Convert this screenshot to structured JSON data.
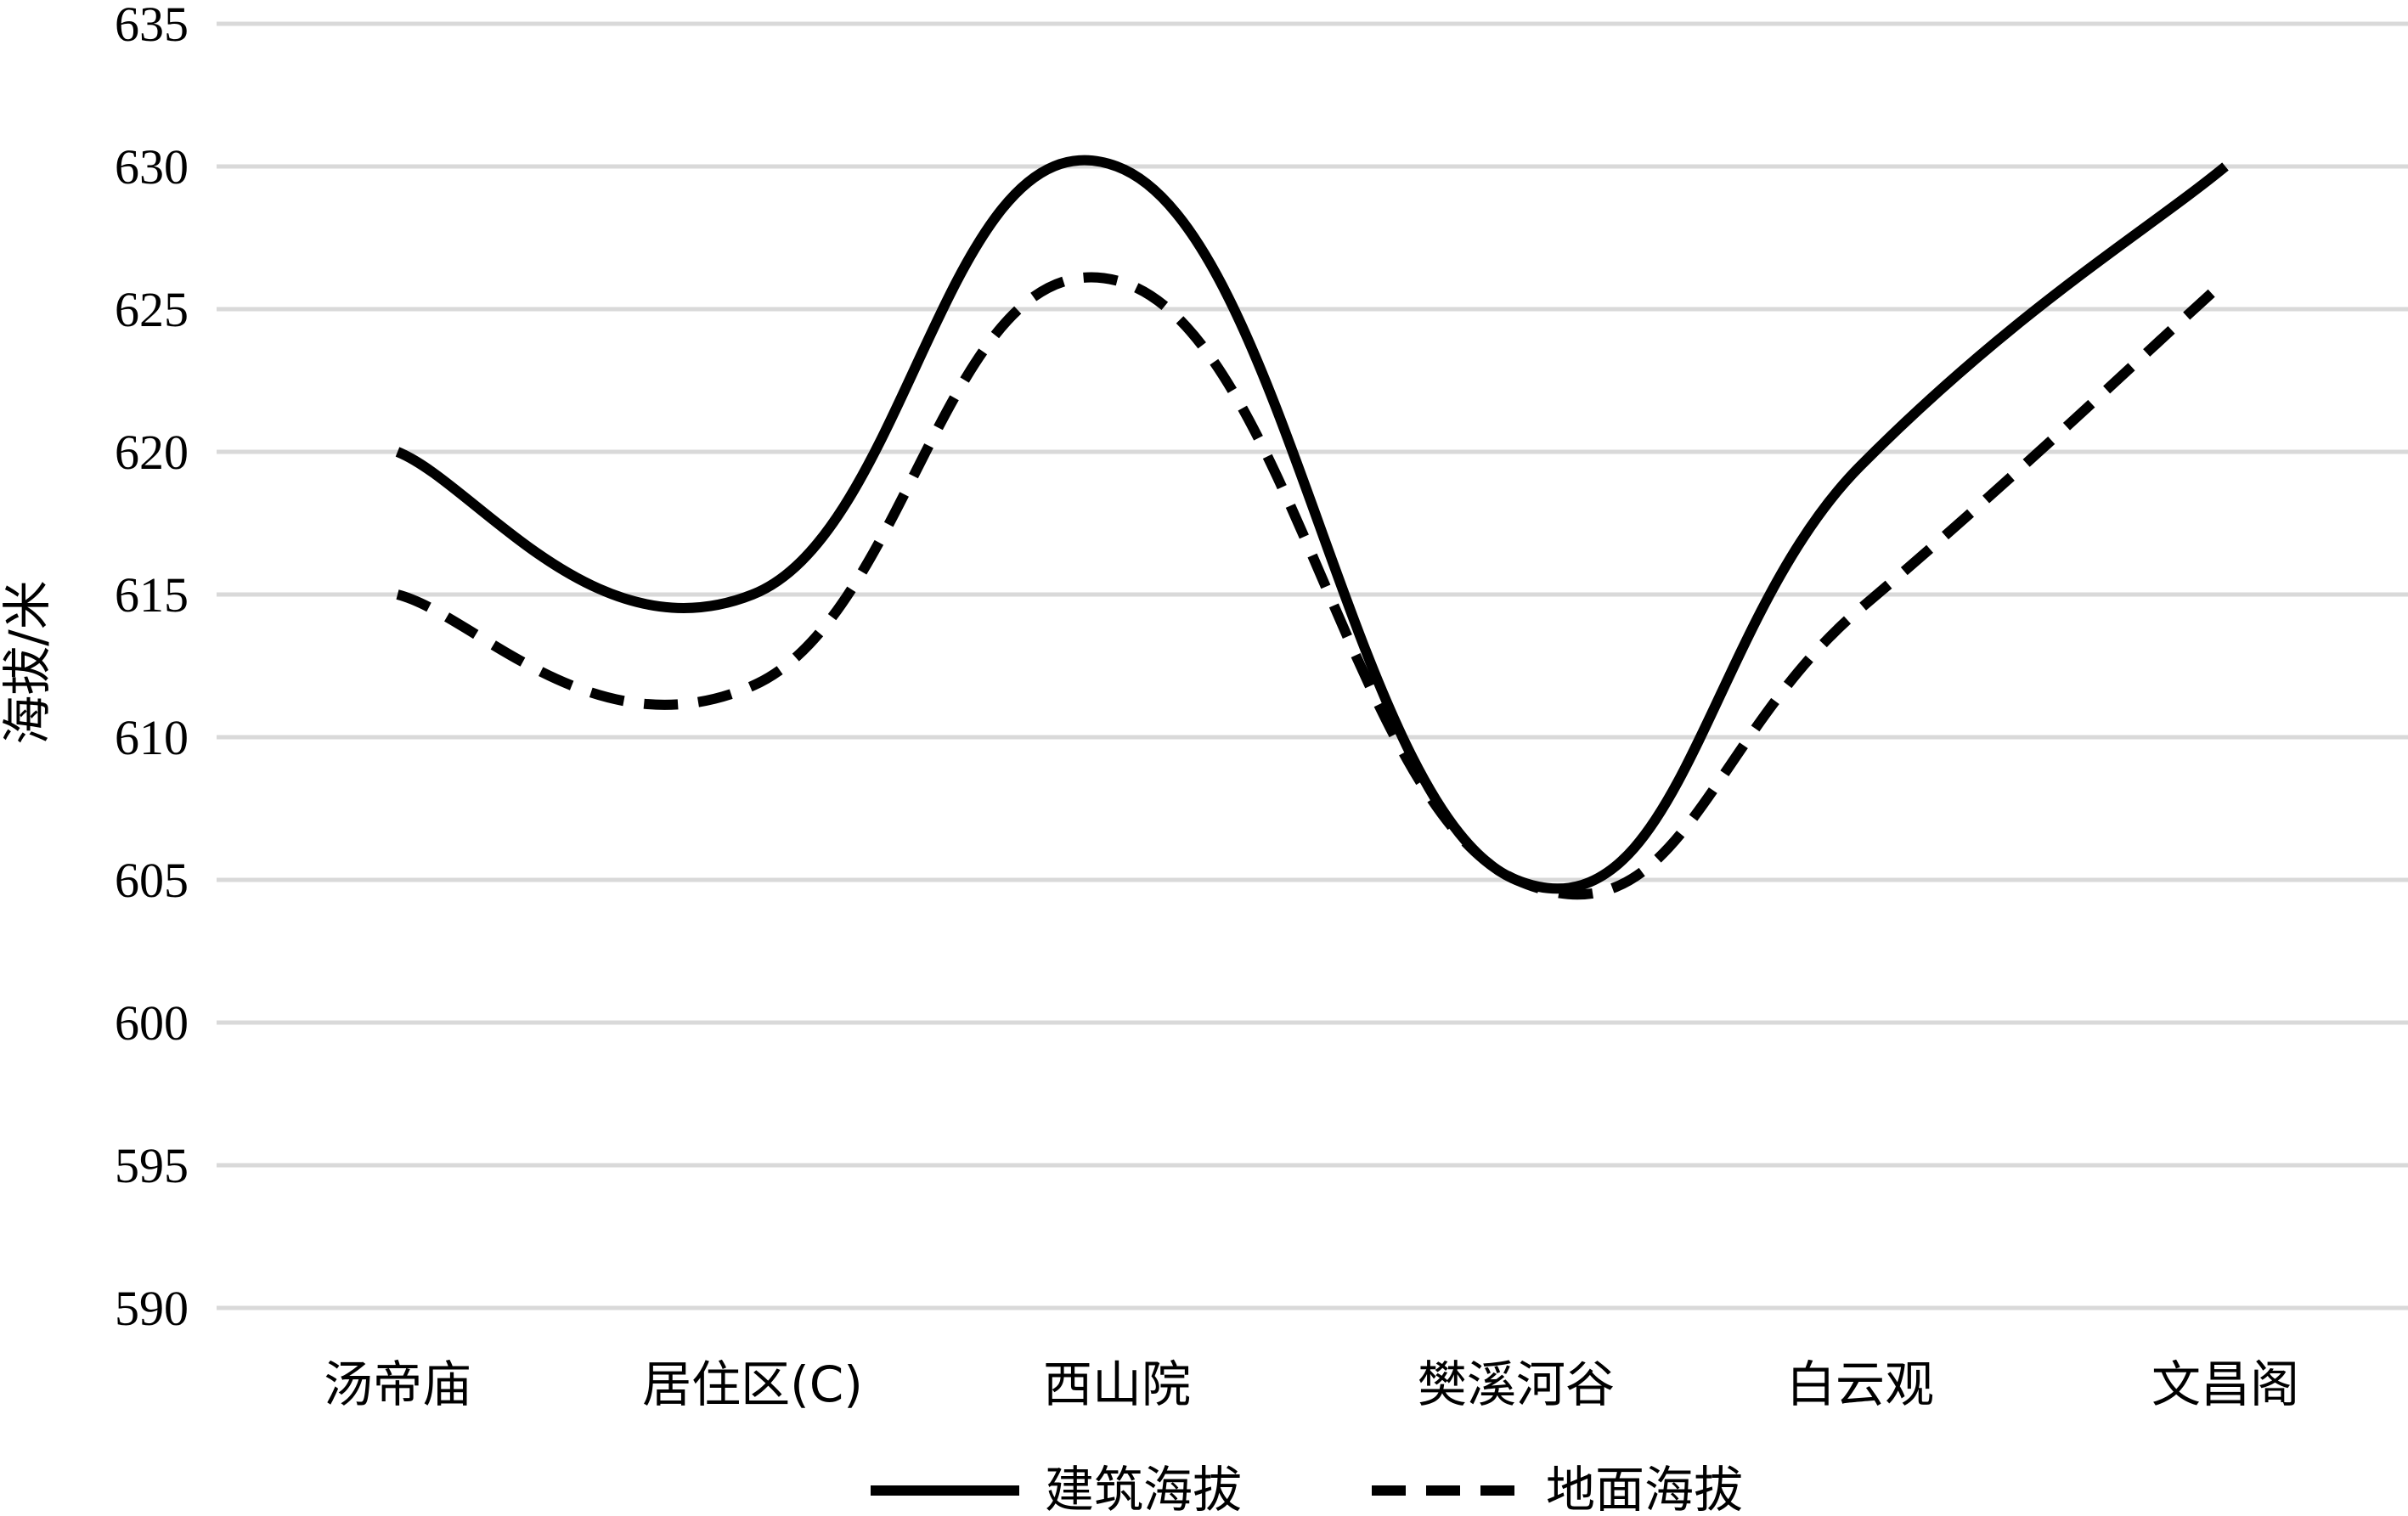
{
  "chart_data": {
    "type": "line",
    "ylabel": "海拔/米",
    "xlabel": "",
    "ylim": [
      590,
      635
    ],
    "yticks": [
      590,
      595,
      600,
      605,
      610,
      615,
      620,
      625,
      630,
      635
    ],
    "categories": [
      "汤帝庙",
      "居住区(C)",
      "西山院",
      "樊溪河谷",
      "白云观",
      "文昌阁"
    ],
    "series": [
      {
        "name": "建筑海拔",
        "values": [
          620,
          615,
          630,
          605,
          619.5,
          630
        ],
        "color": "#000000",
        "style": "solid"
      },
      {
        "name": "地面海拔",
        "values": [
          615,
          611.8,
          626,
          605,
          614.5,
          626
        ],
        "color": "#000000",
        "style": "dashed"
      }
    ],
    "smooth": true,
    "grid": true,
    "legend": "bottom-center"
  }
}
